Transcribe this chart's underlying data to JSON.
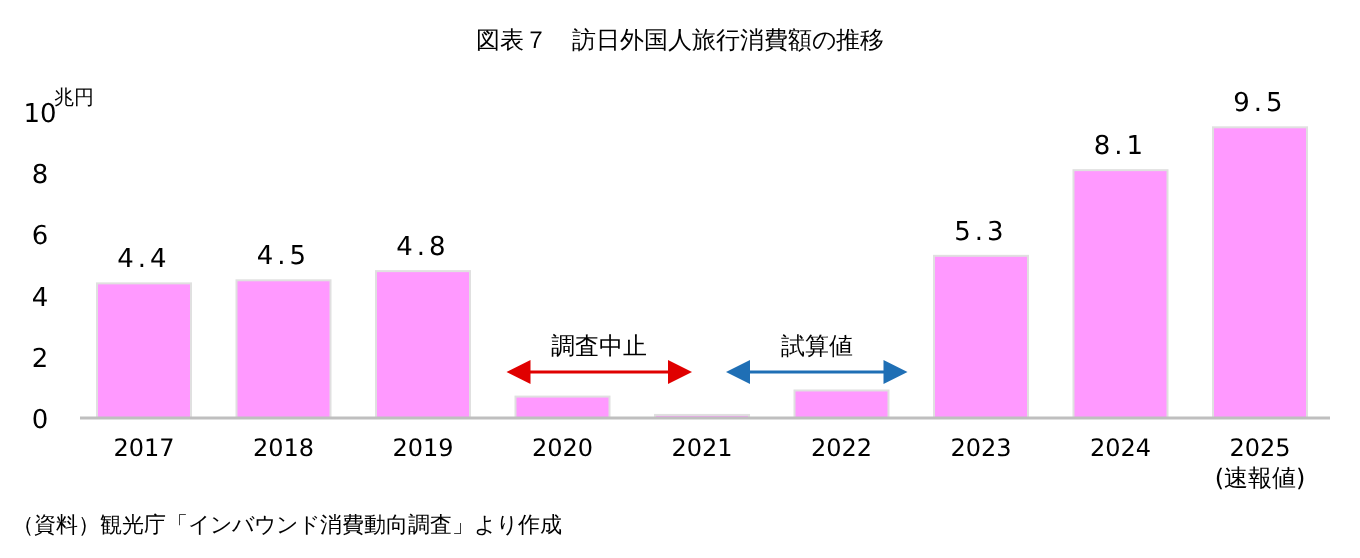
{
  "chart_data": {
    "type": "bar",
    "title": "図表７　訪日外国人旅行消費額の推移",
    "ylabel": "兆円",
    "categories": [
      "2017",
      "2018",
      "2019",
      "2020",
      "2021",
      "2022",
      "2023",
      "2024",
      "2025(速報値)"
    ],
    "values": [
      4.4,
      4.5,
      4.8,
      0.7,
      0.1,
      0.9,
      5.3,
      8.1,
      9.5
    ],
    "value_labels": [
      "4.4",
      "4.5",
      "4.8",
      null,
      null,
      null,
      "5.3",
      "8.1",
      "9.5"
    ],
    "color": "#ff99ff",
    "ylim": [
      0,
      10
    ],
    "yticks": [
      0,
      2,
      4,
      6,
      8,
      10
    ],
    "annotations": [
      "調査中止",
      "試算値",
      "（資料）観光庁「インバウンド消費動向調査」より作成"
    ]
  }
}
